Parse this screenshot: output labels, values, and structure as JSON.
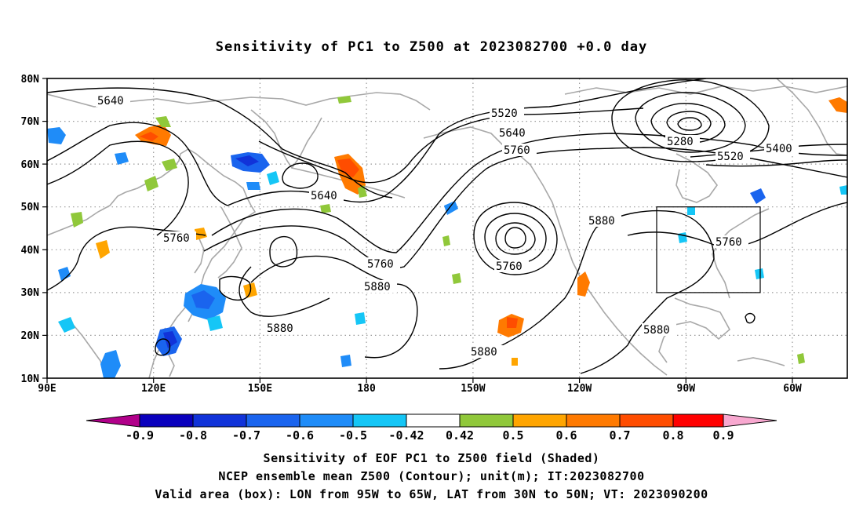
{
  "title": "Sensitivity of PC1 to Z500 at 2023082700 +0.0 day",
  "lat_labels": [
    "80N",
    "70N",
    "60N",
    "50N",
    "40N",
    "30N",
    "20N",
    "10N"
  ],
  "lon_labels": [
    "90E",
    "120E",
    "150E",
    "180",
    "150W",
    "120W",
    "90W",
    "60W"
  ],
  "contour_labels": [
    "5640",
    "5520",
    "5640",
    "5760",
    "5280",
    "5400",
    "5520",
    "5640",
    "5760",
    "5880",
    "5760",
    "5880",
    "5880",
    "5760",
    "5880",
    "5880",
    "5760"
  ],
  "colorbar": {
    "labels": [
      "-0.9",
      "-0.8",
      "-0.7",
      "-0.6",
      "-0.5",
      "-0.42",
      "0.42",
      "0.5",
      "0.6",
      "0.7",
      "0.8",
      "0.9"
    ],
    "colors": [
      "#b1008a",
      "#0a00bd",
      "#1133d9",
      "#1a64ee",
      "#1f8cf8",
      "#15c6f6",
      "#ffffff",
      "#90c83a",
      "#ffa500",
      "#ff7a00",
      "#ff4d00",
      "#ff0000",
      "#f8a8d0"
    ]
  },
  "captions": [
    "Sensitivity of EOF PC1 to Z500 field (Shaded)",
    "NCEP ensemble mean Z500 (Contour); unit(m); IT:2023082700",
    "Valid area (box): LON from 95W to 65W, LAT from 30N to 50N; VT: 2023090200"
  ],
  "colors": {
    "land_outline": "#a8a8a8",
    "grid": "#9a9a9a",
    "contour": "#000000"
  }
}
